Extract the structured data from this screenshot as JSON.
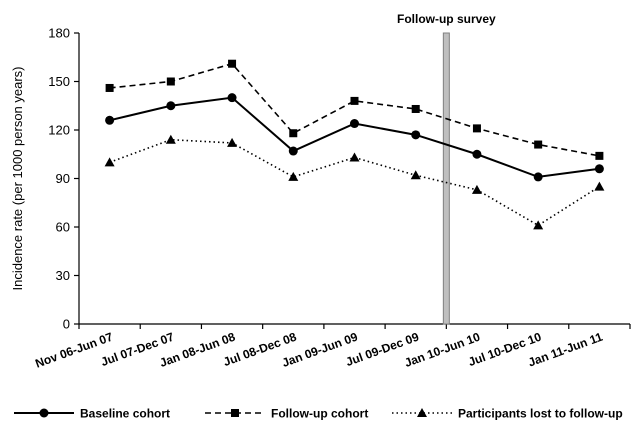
{
  "chart_data": {
    "type": "line",
    "ylabel": "Incidence rate (per 1000 person years)",
    "xlabel": "",
    "ylim": [
      0,
      180
    ],
    "yticks": [
      0,
      30,
      60,
      90,
      120,
      150,
      180
    ],
    "categories": [
      "Nov 06-Jun 07",
      "Jul 07-Dec 07",
      "Jan 08-Jun 08",
      "Jul 08-Dec 08",
      "Jan 09-Jun 09",
      "Jul 09-Dec 09",
      "Jan 10-Jun 10",
      "Jul 10-Dec 10",
      "Jan 11-Jun 11"
    ],
    "series": [
      {
        "name": "Baseline cohort",
        "marker": "circle",
        "dash": "solid",
        "values": [
          126,
          135,
          140,
          107,
          124,
          117,
          105,
          91,
          96
        ]
      },
      {
        "name": "Follow-up cohort",
        "marker": "square",
        "dash": "dashed",
        "values": [
          146,
          150,
          161,
          118,
          138,
          133,
          121,
          111,
          104
        ]
      },
      {
        "name": "Participants lost to follow-up",
        "marker": "triangle",
        "dash": "dotted",
        "values": [
          100,
          114,
          112,
          91,
          103,
          92,
          83,
          61,
          85
        ]
      }
    ],
    "annotation": {
      "label": "Follow-up survey",
      "after_category": "Jul 09-Dec 09"
    },
    "legend_position": "bottom",
    "grid": false
  }
}
